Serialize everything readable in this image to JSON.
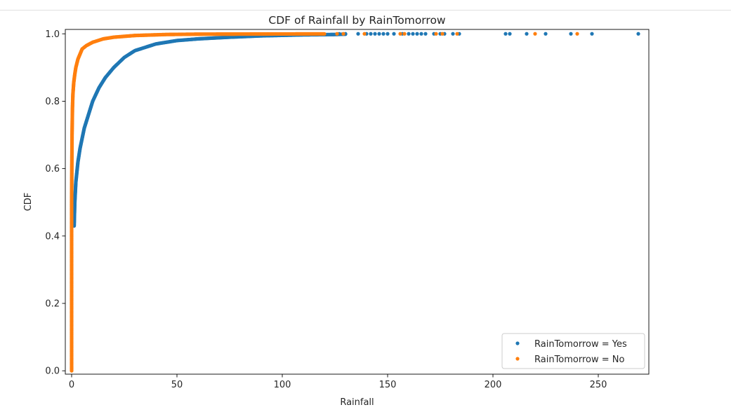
{
  "chart_data": {
    "type": "scatter",
    "title": "CDF of Rainfall by RainTomorrow",
    "xlabel": "Rainfall",
    "ylabel": "CDF",
    "xlim": [
      -3,
      274
    ],
    "ylim": [
      -0.01,
      1.013
    ],
    "xticks": [
      0,
      50,
      100,
      150,
      200,
      250
    ],
    "yticks": [
      0.0,
      0.2,
      0.4,
      0.6,
      0.8,
      1.0
    ],
    "legend_position": "lower-right",
    "grid": false,
    "series": [
      {
        "name": "RainTomorrow = Yes",
        "color": "#1f77b4",
        "curve": [
          [
            1.2,
            0.43
          ],
          [
            1.5,
            0.5
          ],
          [
            2,
            0.56
          ],
          [
            3,
            0.62
          ],
          [
            4,
            0.66
          ],
          [
            6,
            0.72
          ],
          [
            8,
            0.76
          ],
          [
            10,
            0.8
          ],
          [
            13,
            0.84
          ],
          [
            16,
            0.87
          ],
          [
            20,
            0.9
          ],
          [
            25,
            0.93
          ],
          [
            30,
            0.95
          ],
          [
            40,
            0.97
          ],
          [
            50,
            0.98
          ],
          [
            60,
            0.985
          ],
          [
            75,
            0.99
          ],
          [
            90,
            0.994
          ],
          [
            110,
            0.997
          ],
          [
            125,
            0.998
          ],
          [
            130,
            0.999
          ]
        ],
        "outliers": [
          [
            127,
            1.0
          ],
          [
            130,
            1.0
          ],
          [
            136,
            1.0
          ],
          [
            140,
            1.0
          ],
          [
            142,
            1.0
          ],
          [
            144,
            1.0
          ],
          [
            146,
            1.0
          ],
          [
            148,
            1.0
          ],
          [
            150,
            1.0
          ],
          [
            153,
            1.0
          ],
          [
            157,
            1.0
          ],
          [
            160,
            1.0
          ],
          [
            162,
            1.0
          ],
          [
            164,
            1.0
          ],
          [
            166,
            1.0
          ],
          [
            168,
            1.0
          ],
          [
            172,
            1.0
          ],
          [
            175,
            1.0
          ],
          [
            177,
            1.0
          ],
          [
            181,
            1.0
          ],
          [
            184,
            1.0
          ],
          [
            206,
            1.0
          ],
          [
            208,
            1.0
          ],
          [
            216,
            1.0
          ],
          [
            225,
            1.0
          ],
          [
            237,
            1.0
          ],
          [
            247,
            1.0
          ],
          [
            269,
            1.0
          ]
        ]
      },
      {
        "name": "RainTomorrow = No",
        "color": "#ff7f0e",
        "curve": [
          [
            0,
            0.0
          ],
          [
            0,
            0.5
          ],
          [
            0.2,
            0.7
          ],
          [
            0.4,
            0.78
          ],
          [
            0.6,
            0.82
          ],
          [
            1,
            0.855
          ],
          [
            1.5,
            0.88
          ],
          [
            2,
            0.9
          ],
          [
            3,
            0.925
          ],
          [
            4,
            0.94
          ],
          [
            5,
            0.955
          ],
          [
            7,
            0.965
          ],
          [
            10,
            0.975
          ],
          [
            15,
            0.985
          ],
          [
            20,
            0.99
          ],
          [
            30,
            0.995
          ],
          [
            45,
            0.998
          ],
          [
            60,
            0.999
          ],
          [
            90,
            0.9995
          ],
          [
            120,
            0.9998
          ]
        ],
        "outliers": [
          [
            126,
            1.0
          ],
          [
            129,
            1.0
          ],
          [
            139,
            1.0
          ],
          [
            156,
            1.0
          ],
          [
            158,
            1.0
          ],
          [
            173,
            1.0
          ],
          [
            176,
            1.0
          ],
          [
            183,
            1.0
          ],
          [
            220,
            1.0
          ],
          [
            240,
            1.0
          ]
        ]
      }
    ]
  }
}
